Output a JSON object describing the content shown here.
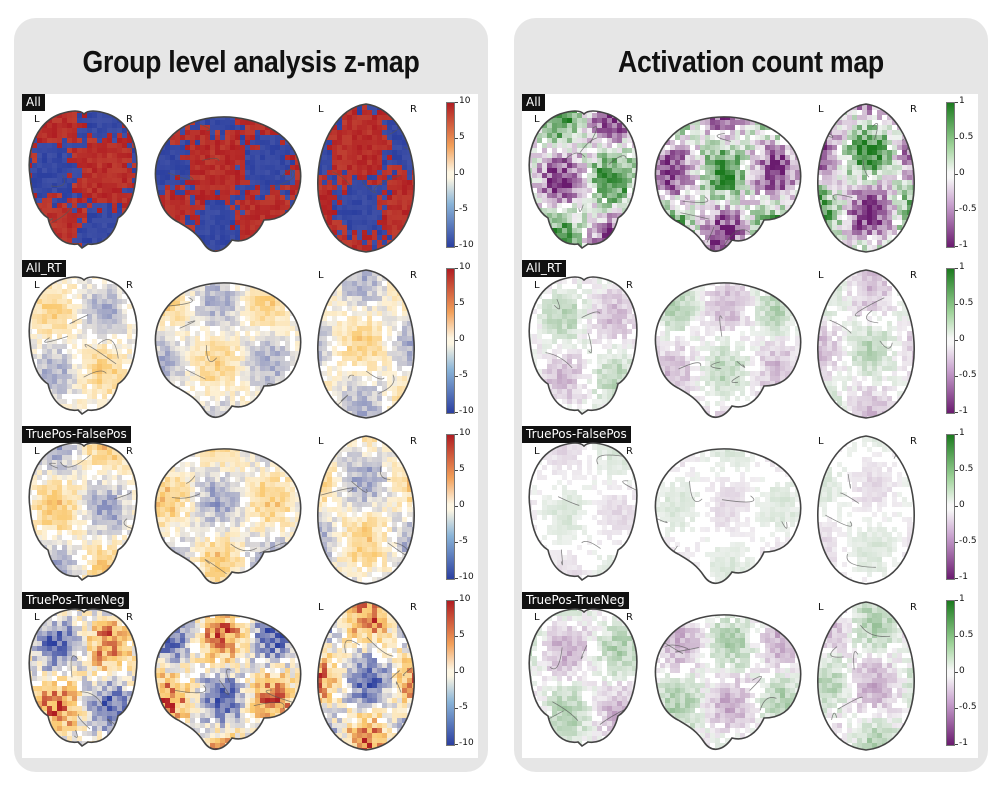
{
  "panels": [
    {
      "id": "zmap",
      "title": "Group level analysis z-map",
      "cmap": "diverging",
      "colorbar_ticks": [
        "10",
        "5",
        "0",
        "-5",
        "-10"
      ],
      "colors": {
        "neg": "#2b3fa0",
        "pos": "#b01d22",
        "mid": "#fdf6e3"
      },
      "rows": [
        {
          "label": "All",
          "orientation_labels": [
            "L",
            "R",
            "L",
            "R"
          ],
          "intensity": 0.95
        },
        {
          "label": "All_RT",
          "orientation_labels": [
            "L",
            "R",
            "L",
            "R"
          ],
          "intensity": 0.35
        },
        {
          "label": "TruePos-FalsePos",
          "orientation_labels": [
            "L",
            "R",
            "L",
            "R"
          ],
          "intensity": 0.4
        },
        {
          "label": "TruePos-TrueNeg",
          "orientation_labels": [
            "L",
            "R",
            "L",
            "R"
          ],
          "intensity": 0.7
        }
      ]
    },
    {
      "id": "count",
      "title": "Activation count map",
      "cmap": "purple-green",
      "colorbar_ticks": [
        "1",
        "0.5",
        "0",
        "-0.5",
        "-1"
      ],
      "colors": {
        "neg": "#6a1b6f",
        "pos": "#1b7a1e",
        "mid": "#f7f7f7"
      },
      "rows": [
        {
          "label": "All",
          "orientation_labels": [
            "L",
            "R",
            "L",
            "R"
          ],
          "intensity": 0.8
        },
        {
          "label": "All_RT",
          "orientation_labels": [
            "L",
            "R",
            "L",
            "R"
          ],
          "intensity": 0.25
        },
        {
          "label": "TruePos-FalsePos",
          "orientation_labels": [
            "L",
            "R",
            "L",
            "R"
          ],
          "intensity": 0.12
        },
        {
          "label": "TruePos-TrueNeg",
          "orientation_labels": [
            "L",
            "R",
            "L",
            "R"
          ],
          "intensity": 0.3
        }
      ]
    }
  ]
}
